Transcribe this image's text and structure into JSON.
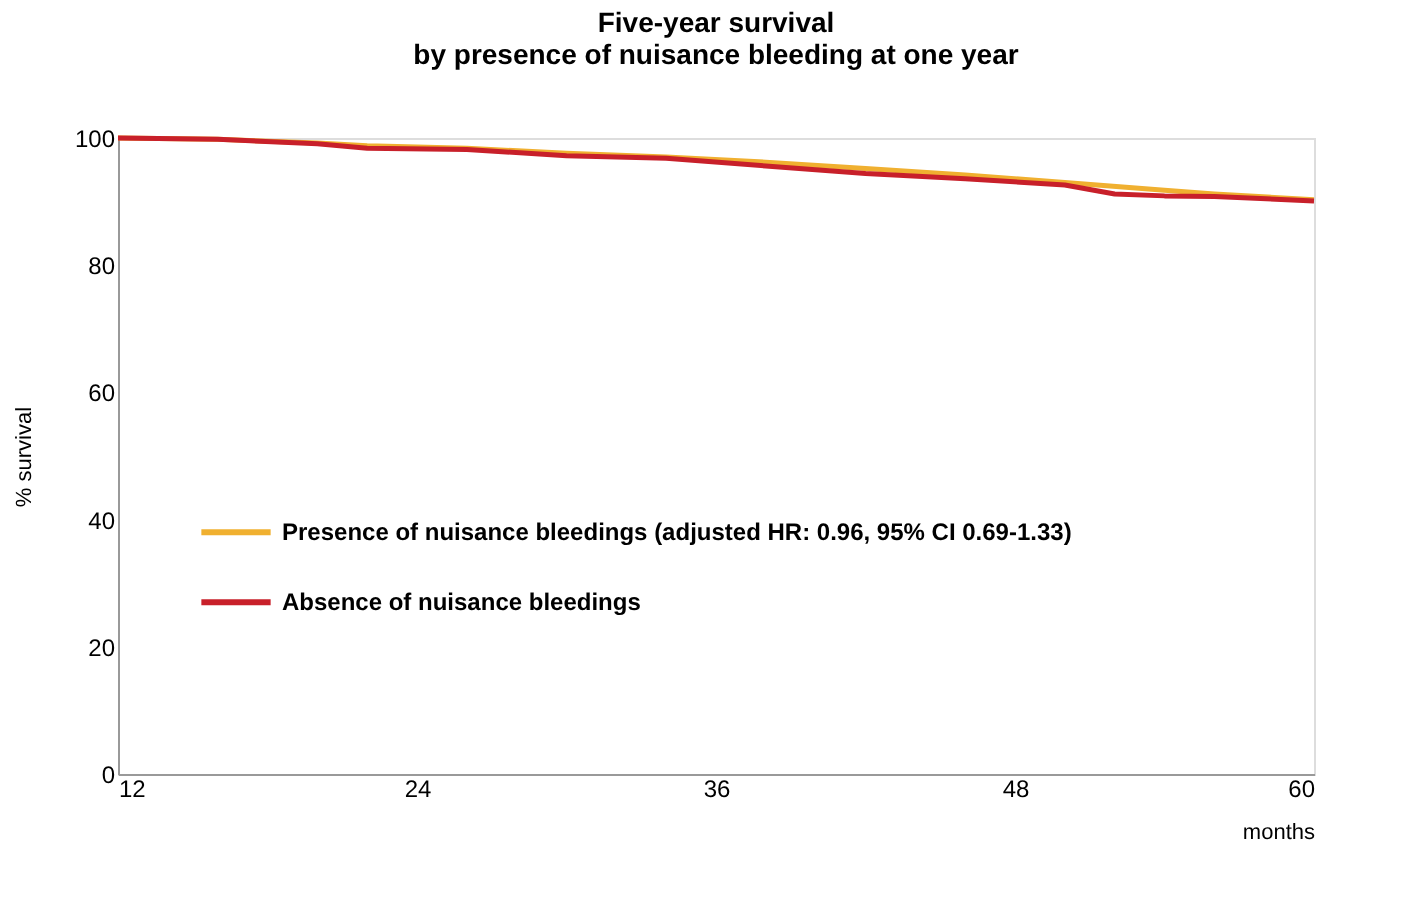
{
  "chart_data": {
    "type": "line",
    "title": "Five-year survival\nby presence of nuisance bleeding at one year",
    "xlabel": "months",
    "ylabel": "% survival",
    "xlim": [
      12,
      60
    ],
    "xticks": [
      12,
      24,
      36,
      48,
      60
    ],
    "ylim": [
      0,
      100
    ],
    "yticks": [
      0,
      20,
      40,
      60,
      80,
      100
    ],
    "grid": false,
    "legend": "center left",
    "marker": "none",
    "line_style": "solid",
    "series": [
      {
        "name": "Presence of nuisance bleedings (adjusted HR: 0.96, 95% CI 0.69-1.33)",
        "color": "#f0b030",
        "x": [
          12,
          16,
          20,
          22,
          26,
          30,
          34,
          38,
          42,
          46,
          50,
          54,
          56,
          60
        ],
        "values": [
          100,
          99.8,
          99.2,
          98.8,
          98.4,
          97.6,
          97.0,
          96.2,
          95.2,
          94.2,
          93.0,
          91.8,
          91.2,
          90.3
        ]
      },
      {
        "name": "Absence of nuisance bleedings",
        "color": "#c8202a",
        "x": [
          12,
          16,
          20,
          22,
          26,
          30,
          34,
          38,
          42,
          46,
          50,
          52,
          54,
          56,
          60
        ],
        "values": [
          100,
          99.8,
          99.1,
          98.4,
          98.2,
          97.2,
          96.8,
          95.6,
          94.4,
          93.6,
          92.6,
          91.2,
          90.9,
          90.8,
          90.1
        ]
      }
    ]
  }
}
